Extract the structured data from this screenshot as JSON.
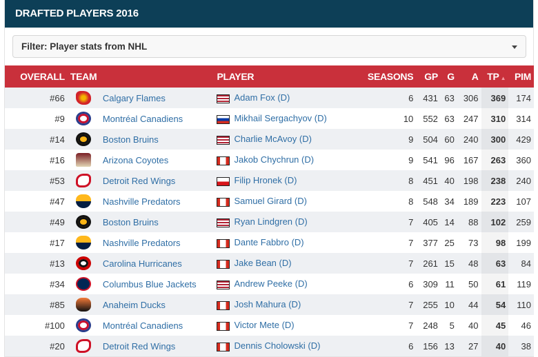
{
  "title": "DRAFTED PLAYERS 2016",
  "filter": {
    "label": "Filter: Player stats from NHL",
    "icon": "caret-down-icon"
  },
  "columns": {
    "overall": "OVERALL",
    "team": "TEAM",
    "player": "PLAYER",
    "seasons": "SEASONS",
    "gp": "GP",
    "g": "G",
    "a": "A",
    "tp": "TP",
    "pim": "PIM",
    "sort_icon": "sort-ascending-icon"
  },
  "colors": {
    "header": "#0d3f57",
    "table_header": "#c9303b",
    "link": "#2f6ea5"
  },
  "rows": [
    {
      "overall": "#66",
      "team": "Calgary Flames",
      "logo": "flames",
      "flag": "us",
      "player": "Adam Fox (D)",
      "seasons": "6",
      "gp": "431",
      "g": "63",
      "a": "306",
      "tp": "369",
      "pim": "174"
    },
    {
      "overall": "#9",
      "team": "Montréal Canadiens",
      "logo": "canadiens",
      "flag": "ru",
      "player": "Mikhail Sergachyov (D)",
      "seasons": "10",
      "gp": "552",
      "g": "63",
      "a": "247",
      "tp": "310",
      "pim": "314"
    },
    {
      "overall": "#14",
      "team": "Boston Bruins",
      "logo": "bruins",
      "flag": "us",
      "player": "Charlie McAvoy (D)",
      "seasons": "9",
      "gp": "504",
      "g": "60",
      "a": "240",
      "tp": "300",
      "pim": "429"
    },
    {
      "overall": "#16",
      "team": "Arizona Coyotes",
      "logo": "coyotes",
      "flag": "ca",
      "player": "Jakob Chychrun (D)",
      "seasons": "9",
      "gp": "541",
      "g": "96",
      "a": "167",
      "tp": "263",
      "pim": "360"
    },
    {
      "overall": "#53",
      "team": "Detroit Red Wings",
      "logo": "redwings",
      "flag": "cz",
      "player": "Filip Hronek (D)",
      "seasons": "8",
      "gp": "451",
      "g": "40",
      "a": "198",
      "tp": "238",
      "pim": "240"
    },
    {
      "overall": "#47",
      "team": "Nashville Predators",
      "logo": "predators",
      "flag": "ca",
      "player": "Samuel Girard (D)",
      "seasons": "8",
      "gp": "548",
      "g": "34",
      "a": "189",
      "tp": "223",
      "pim": "107"
    },
    {
      "overall": "#49",
      "team": "Boston Bruins",
      "logo": "bruins",
      "flag": "us",
      "player": "Ryan Lindgren (D)",
      "seasons": "7",
      "gp": "405",
      "g": "14",
      "a": "88",
      "tp": "102",
      "pim": "259"
    },
    {
      "overall": "#17",
      "team": "Nashville Predators",
      "logo": "predators",
      "flag": "ca",
      "player": "Dante Fabbro (D)",
      "seasons": "7",
      "gp": "377",
      "g": "25",
      "a": "73",
      "tp": "98",
      "pim": "199"
    },
    {
      "overall": "#13",
      "team": "Carolina Hurricanes",
      "logo": "hurricanes",
      "flag": "ca",
      "player": "Jake Bean (D)",
      "seasons": "7",
      "gp": "261",
      "g": "15",
      "a": "48",
      "tp": "63",
      "pim": "84"
    },
    {
      "overall": "#34",
      "team": "Columbus Blue Jackets",
      "logo": "bluejackets",
      "flag": "us",
      "player": "Andrew Peeke (D)",
      "seasons": "6",
      "gp": "309",
      "g": "11",
      "a": "50",
      "tp": "61",
      "pim": "119"
    },
    {
      "overall": "#85",
      "team": "Anaheim Ducks",
      "logo": "ducks",
      "flag": "ca",
      "player": "Josh Mahura (D)",
      "seasons": "7",
      "gp": "255",
      "g": "10",
      "a": "44",
      "tp": "54",
      "pim": "110"
    },
    {
      "overall": "#100",
      "team": "Montréal Canadiens",
      "logo": "canadiens",
      "flag": "ca",
      "player": "Victor Mete (D)",
      "seasons": "7",
      "gp": "248",
      "g": "5",
      "a": "40",
      "tp": "45",
      "pim": "46"
    },
    {
      "overall": "#20",
      "team": "Detroit Red Wings",
      "logo": "redwings",
      "flag": "ca",
      "player": "Dennis Cholowski (D)",
      "seasons": "6",
      "gp": "156",
      "g": "13",
      "a": "27",
      "tp": "40",
      "pim": "38"
    }
  ]
}
